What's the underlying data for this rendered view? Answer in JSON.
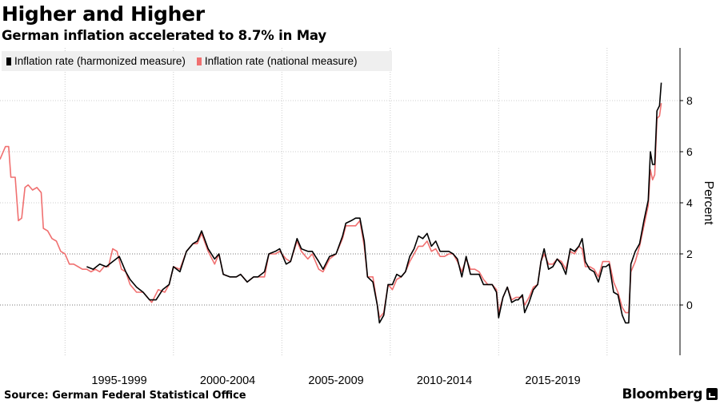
{
  "header": {
    "title": "Higher and Higher",
    "subtitle": "German inflation accelerated to 8.7% in May"
  },
  "footer": {
    "source": "Source: German Federal Statistical Office",
    "brand": "Bloomberg"
  },
  "colors": {
    "harmonized": "#000000",
    "national": "#f07070",
    "grid": "#cccccc",
    "legend_bg": "#efefef"
  },
  "chart_data": {
    "type": "line",
    "title": "Higher and Higher",
    "subtitle": "German inflation accelerated to 8.7% in May",
    "xlabel": "",
    "ylabel": "Percent",
    "x_unit": "year",
    "xlim": [
      1992.0,
      2022.7
    ],
    "ylim": [
      -2.0,
      10.0
    ],
    "yticks": [
      0,
      2,
      4,
      6,
      8
    ],
    "xtick_labels": [
      {
        "label": "1995-1999",
        "start": 1995,
        "end": 2000
      },
      {
        "label": "2000-2004",
        "start": 2000,
        "end": 2005
      },
      {
        "label": "2005-2009",
        "start": 2005,
        "end": 2010
      },
      {
        "label": "2010-2014",
        "start": 2010,
        "end": 2015
      },
      {
        "label": "2015-2019",
        "start": 2015,
        "end": 2020
      }
    ],
    "legend_position": "top-left",
    "grid": true,
    "series": [
      {
        "name": "Inflation rate (harmonized measure)",
        "color": "#000000",
        "points": [
          [
            1996.0,
            1.5
          ],
          [
            1996.3,
            1.4
          ],
          [
            1996.6,
            1.6
          ],
          [
            1996.9,
            1.5
          ],
          [
            1997.2,
            1.7
          ],
          [
            1997.5,
            1.9
          ],
          [
            1997.8,
            1.3
          ],
          [
            1998.0,
            1.0
          ],
          [
            1998.3,
            0.7
          ],
          [
            1998.6,
            0.5
          ],
          [
            1998.9,
            0.2
          ],
          [
            1999.2,
            0.2
          ],
          [
            1999.5,
            0.6
          ],
          [
            1999.8,
            0.8
          ],
          [
            2000.0,
            1.5
          ],
          [
            2000.3,
            1.3
          ],
          [
            2000.6,
            2.1
          ],
          [
            2000.9,
            2.4
          ],
          [
            2001.1,
            2.5
          ],
          [
            2001.3,
            2.9
          ],
          [
            2001.6,
            2.2
          ],
          [
            2001.9,
            1.8
          ],
          [
            2002.1,
            2.0
          ],
          [
            2002.3,
            1.2
          ],
          [
            2002.6,
            1.1
          ],
          [
            2002.9,
            1.1
          ],
          [
            2003.1,
            1.2
          ],
          [
            2003.4,
            0.9
          ],
          [
            2003.7,
            1.1
          ],
          [
            2003.9,
            1.1
          ],
          [
            2004.2,
            1.3
          ],
          [
            2004.4,
            2.0
          ],
          [
            2004.7,
            2.1
          ],
          [
            2004.9,
            2.2
          ],
          [
            2005.2,
            1.6
          ],
          [
            2005.4,
            1.7
          ],
          [
            2005.7,
            2.6
          ],
          [
            2005.9,
            2.2
          ],
          [
            2006.2,
            2.1
          ],
          [
            2006.4,
            2.1
          ],
          [
            2006.7,
            1.7
          ],
          [
            2006.9,
            1.4
          ],
          [
            2007.2,
            1.9
          ],
          [
            2007.5,
            2.0
          ],
          [
            2007.8,
            2.7
          ],
          [
            2007.95,
            3.2
          ],
          [
            2008.2,
            3.3
          ],
          [
            2008.4,
            3.4
          ],
          [
            2008.6,
            3.4
          ],
          [
            2008.8,
            2.5
          ],
          [
            2008.95,
            1.1
          ],
          [
            2009.2,
            0.9
          ],
          [
            2009.4,
            0.0
          ],
          [
            2009.5,
            -0.7
          ],
          [
            2009.7,
            -0.4
          ],
          [
            2009.9,
            0.8
          ],
          [
            2010.1,
            0.8
          ],
          [
            2010.3,
            1.2
          ],
          [
            2010.5,
            1.1
          ],
          [
            2010.7,
            1.3
          ],
          [
            2010.9,
            1.9
          ],
          [
            2011.1,
            2.2
          ],
          [
            2011.3,
            2.7
          ],
          [
            2011.5,
            2.6
          ],
          [
            2011.7,
            2.8
          ],
          [
            2011.9,
            2.3
          ],
          [
            2012.1,
            2.5
          ],
          [
            2012.3,
            2.1
          ],
          [
            2012.5,
            2.1
          ],
          [
            2012.7,
            2.1
          ],
          [
            2012.9,
            2.0
          ],
          [
            2013.1,
            1.8
          ],
          [
            2013.3,
            1.1
          ],
          [
            2013.5,
            1.9
          ],
          [
            2013.7,
            1.2
          ],
          [
            2013.9,
            1.2
          ],
          [
            2014.1,
            1.2
          ],
          [
            2014.3,
            0.8
          ],
          [
            2014.5,
            0.8
          ],
          [
            2014.7,
            0.8
          ],
          [
            2014.9,
            0.5
          ],
          [
            2015.0,
            -0.5
          ],
          [
            2015.2,
            0.3
          ],
          [
            2015.4,
            0.7
          ],
          [
            2015.6,
            0.1
          ],
          [
            2015.8,
            0.2
          ],
          [
            2015.9,
            0.2
          ],
          [
            2016.1,
            0.4
          ],
          [
            2016.2,
            -0.3
          ],
          [
            2016.4,
            0.1
          ],
          [
            2016.6,
            0.6
          ],
          [
            2016.8,
            0.8
          ],
          [
            2016.95,
            1.7
          ],
          [
            2017.1,
            2.2
          ],
          [
            2017.3,
            1.4
          ],
          [
            2017.5,
            1.5
          ],
          [
            2017.7,
            1.8
          ],
          [
            2017.9,
            1.6
          ],
          [
            2018.1,
            1.2
          ],
          [
            2018.3,
            2.2
          ],
          [
            2018.5,
            2.1
          ],
          [
            2018.7,
            2.3
          ],
          [
            2018.85,
            2.6
          ],
          [
            2019.0,
            1.7
          ],
          [
            2019.2,
            1.4
          ],
          [
            2019.4,
            1.3
          ],
          [
            2019.6,
            0.9
          ],
          [
            2019.8,
            1.5
          ],
          [
            2019.95,
            1.5
          ],
          [
            2020.1,
            1.6
          ],
          [
            2020.3,
            0.5
          ],
          [
            2020.5,
            0.4
          ],
          [
            2020.7,
            -0.4
          ],
          [
            2020.85,
            -0.7
          ],
          [
            2021.0,
            -0.7
          ],
          [
            2021.1,
            1.6
          ],
          [
            2021.3,
            2.1
          ],
          [
            2021.5,
            2.4
          ],
          [
            2021.7,
            3.3
          ],
          [
            2021.9,
            4.1
          ],
          [
            2022.0,
            6.0
          ],
          [
            2022.1,
            5.5
          ],
          [
            2022.2,
            5.5
          ],
          [
            2022.3,
            7.6
          ],
          [
            2022.42,
            7.8
          ],
          [
            2022.5,
            8.7
          ]
        ]
      },
      {
        "name": "Inflation rate (national measure)",
        "color": "#f07070",
        "points": [
          [
            1992.0,
            5.7
          ],
          [
            1992.1,
            5.9
          ],
          [
            1992.25,
            6.2
          ],
          [
            1992.4,
            6.2
          ],
          [
            1992.5,
            5.0
          ],
          [
            1992.7,
            5.0
          ],
          [
            1992.85,
            3.3
          ],
          [
            1993.0,
            3.4
          ],
          [
            1993.15,
            4.6
          ],
          [
            1993.3,
            4.7
          ],
          [
            1993.5,
            4.5
          ],
          [
            1993.7,
            4.6
          ],
          [
            1993.9,
            4.4
          ],
          [
            1994.0,
            3.0
          ],
          [
            1994.2,
            2.9
          ],
          [
            1994.4,
            2.6
          ],
          [
            1994.6,
            2.5
          ],
          [
            1994.8,
            2.1
          ],
          [
            1995.0,
            2.0
          ],
          [
            1995.2,
            1.6
          ],
          [
            1995.4,
            1.6
          ],
          [
            1995.6,
            1.5
          ],
          [
            1995.8,
            1.4
          ],
          [
            1996.0,
            1.4
          ],
          [
            1996.2,
            1.3
          ],
          [
            1996.4,
            1.4
          ],
          [
            1996.6,
            1.3
          ],
          [
            1996.8,
            1.5
          ],
          [
            1997.0,
            1.5
          ],
          [
            1997.2,
            2.2
          ],
          [
            1997.4,
            2.1
          ],
          [
            1997.6,
            1.4
          ],
          [
            1997.8,
            1.3
          ],
          [
            1998.0,
            0.8
          ],
          [
            1998.3,
            0.5
          ],
          [
            1998.6,
            0.5
          ],
          [
            1998.8,
            0.3
          ],
          [
            1999.0,
            0.1
          ],
          [
            1999.3,
            0.6
          ],
          [
            1999.6,
            0.5
          ],
          [
            1999.8,
            0.8
          ],
          [
            2000.0,
            1.5
          ],
          [
            2000.3,
            1.4
          ],
          [
            2000.6,
            2.1
          ],
          [
            2000.9,
            2.4
          ],
          [
            2001.1,
            2.4
          ],
          [
            2001.3,
            2.8
          ],
          [
            2001.6,
            2.1
          ],
          [
            2001.9,
            1.6
          ],
          [
            2002.1,
            2.0
          ],
          [
            2002.3,
            1.2
          ],
          [
            2002.6,
            1.1
          ],
          [
            2002.9,
            1.1
          ],
          [
            2003.1,
            1.2
          ],
          [
            2003.4,
            0.9
          ],
          [
            2003.7,
            1.1
          ],
          [
            2003.9,
            1.1
          ],
          [
            2004.2,
            1.1
          ],
          [
            2004.4,
            2.0
          ],
          [
            2004.7,
            2.0
          ],
          [
            2004.9,
            2.1
          ],
          [
            2005.2,
            1.8
          ],
          [
            2005.4,
            1.7
          ],
          [
            2005.7,
            2.5
          ],
          [
            2005.9,
            2.1
          ],
          [
            2006.2,
            1.8
          ],
          [
            2006.4,
            2.0
          ],
          [
            2006.7,
            1.4
          ],
          [
            2006.9,
            1.3
          ],
          [
            2007.2,
            1.8
          ],
          [
            2007.5,
            2.0
          ],
          [
            2007.8,
            2.6
          ],
          [
            2007.95,
            3.1
          ],
          [
            2008.2,
            3.1
          ],
          [
            2008.4,
            3.1
          ],
          [
            2008.6,
            3.3
          ],
          [
            2008.8,
            2.3
          ],
          [
            2008.95,
            1.1
          ],
          [
            2009.2,
            1.1
          ],
          [
            2009.4,
            0.0
          ],
          [
            2009.5,
            -0.5
          ],
          [
            2009.7,
            -0.3
          ],
          [
            2009.9,
            0.8
          ],
          [
            2010.1,
            0.6
          ],
          [
            2010.3,
            1.0
          ],
          [
            2010.5,
            1.1
          ],
          [
            2010.7,
            1.3
          ],
          [
            2010.9,
            1.7
          ],
          [
            2011.1,
            2.0
          ],
          [
            2011.3,
            2.3
          ],
          [
            2011.5,
            2.3
          ],
          [
            2011.7,
            2.5
          ],
          [
            2011.9,
            2.1
          ],
          [
            2012.1,
            2.2
          ],
          [
            2012.3,
            1.9
          ],
          [
            2012.5,
            1.9
          ],
          [
            2012.7,
            2.0
          ],
          [
            2012.9,
            2.0
          ],
          [
            2013.1,
            1.7
          ],
          [
            2013.3,
            1.3
          ],
          [
            2013.5,
            1.8
          ],
          [
            2013.7,
            1.4
          ],
          [
            2013.9,
            1.4
          ],
          [
            2014.1,
            1.3
          ],
          [
            2014.3,
            1.0
          ],
          [
            2014.5,
            0.8
          ],
          [
            2014.7,
            0.8
          ],
          [
            2014.9,
            0.6
          ],
          [
            2015.0,
            -0.3
          ],
          [
            2015.2,
            0.3
          ],
          [
            2015.4,
            0.7
          ],
          [
            2015.6,
            0.2
          ],
          [
            2015.8,
            0.3
          ],
          [
            2015.9,
            0.3
          ],
          [
            2016.1,
            0.3
          ],
          [
            2016.2,
            0.0
          ],
          [
            2016.4,
            0.3
          ],
          [
            2016.6,
            0.7
          ],
          [
            2016.8,
            0.8
          ],
          [
            2016.95,
            1.7
          ],
          [
            2017.1,
            2.0
          ],
          [
            2017.3,
            1.6
          ],
          [
            2017.5,
            1.6
          ],
          [
            2017.7,
            1.8
          ],
          [
            2017.9,
            1.7
          ],
          [
            2018.1,
            1.4
          ],
          [
            2018.3,
            2.1
          ],
          [
            2018.5,
            2.0
          ],
          [
            2018.7,
            2.3
          ],
          [
            2018.85,
            2.2
          ],
          [
            2019.0,
            1.5
          ],
          [
            2019.2,
            1.5
          ],
          [
            2019.4,
            1.4
          ],
          [
            2019.6,
            1.1
          ],
          [
            2019.8,
            1.7
          ],
          [
            2019.95,
            1.7
          ],
          [
            2020.1,
            1.7
          ],
          [
            2020.3,
            0.9
          ],
          [
            2020.5,
            0.5
          ],
          [
            2020.7,
            -0.1
          ],
          [
            2020.85,
            -0.3
          ],
          [
            2021.0,
            -0.3
          ],
          [
            2021.1,
            1.3
          ],
          [
            2021.3,
            1.7
          ],
          [
            2021.5,
            2.3
          ],
          [
            2021.7,
            3.1
          ],
          [
            2021.9,
            3.9
          ],
          [
            2022.0,
            5.3
          ],
          [
            2022.1,
            4.9
          ],
          [
            2022.2,
            5.1
          ],
          [
            2022.3,
            7.3
          ],
          [
            2022.42,
            7.4
          ],
          [
            2022.5,
            7.9
          ]
        ]
      }
    ]
  }
}
